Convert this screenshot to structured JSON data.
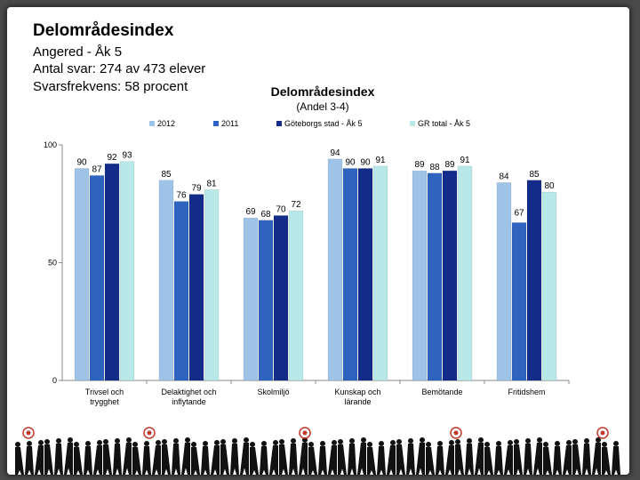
{
  "slide": {
    "title": "Delområdesindex",
    "lines": [
      "Angered - Åk 5",
      "Antal svar: 274 av 473 elever",
      "Svarsfrekvens: 58 procent"
    ]
  },
  "colors": {
    "2012": "#9ec3e6",
    "2011": "#2e63c0",
    "Göteborgs stad - Åk 5": "#132c8a",
    "GR total - Åk 5": "#b8e8e8"
  },
  "chart_data": {
    "type": "bar",
    "title": "Delområdesindex",
    "subtitle": "(Andel 3-4)",
    "ylim": [
      0,
      100
    ],
    "yticks": [
      0,
      50,
      100
    ],
    "legend_position": "top",
    "categories": [
      [
        "Trivsel och",
        "trygghet"
      ],
      [
        "Delaktighet och",
        "inflytande"
      ],
      [
        "Skolmiljö"
      ],
      [
        "Kunskap och",
        "lärande"
      ],
      [
        "Bemötande"
      ],
      [
        "Fritidshem"
      ]
    ],
    "series": [
      {
        "name": "2012",
        "values": [
          90,
          85,
          69,
          94,
          89,
          84
        ]
      },
      {
        "name": "2011",
        "values": [
          87,
          76,
          68,
          90,
          88,
          67
        ]
      },
      {
        "name": "Göteborgs stad - Åk 5",
        "values": [
          92,
          79,
          70,
          90,
          89,
          85
        ]
      },
      {
        "name": "GR total - Åk 5",
        "values": [
          93,
          81,
          72,
          91,
          91,
          80
        ]
      }
    ]
  }
}
